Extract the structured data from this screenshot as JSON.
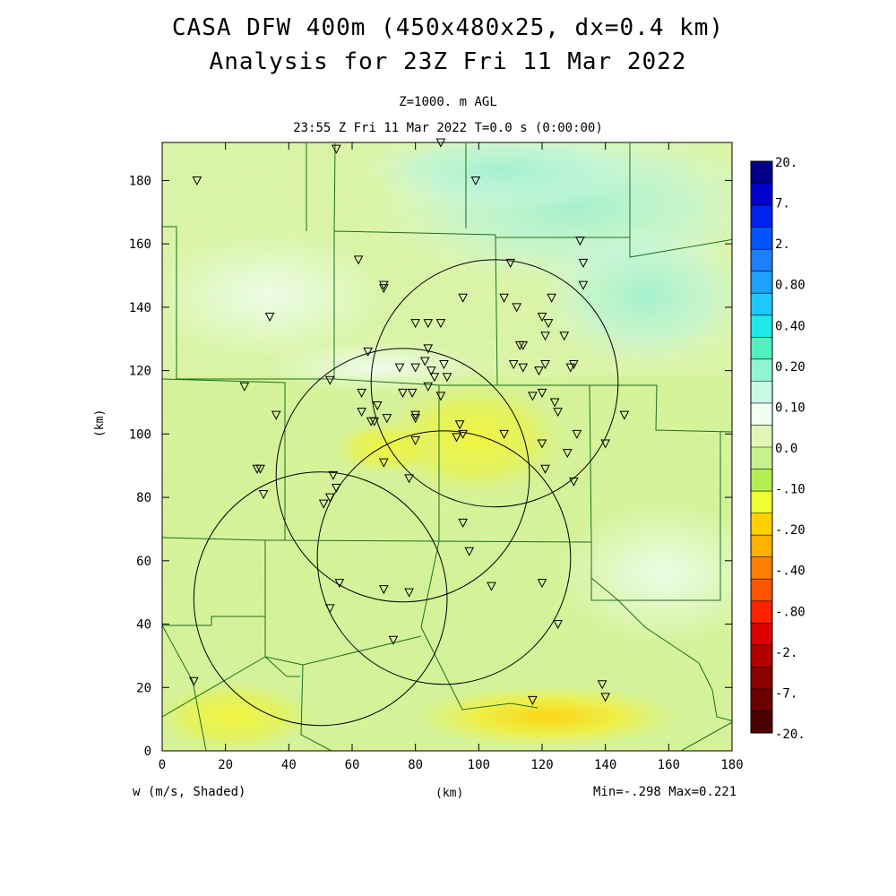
{
  "header": {
    "title_line1": "CASA DFW 400m (450x480x25, dx=0.4 km)",
    "title_line2": "Analysis for 23Z Fri 11 Mar 2022",
    "level": "Z=1000. m AGL",
    "time": "23:55 Z Fri 11 Mar 2022    T=0.0 s (0:00:00)"
  },
  "footer": {
    "variable": "w (m/s, Shaded)",
    "x_unit": "(km)",
    "minmax": "Min=-.298 Max=0.221"
  },
  "axes": {
    "y_unit": "(km)",
    "x_ticks": [
      0,
      20,
      40,
      60,
      80,
      100,
      120,
      140,
      160,
      180
    ],
    "y_ticks": [
      0,
      20,
      40,
      60,
      80,
      100,
      120,
      140,
      160,
      180
    ],
    "x_range": [
      0,
      180
    ],
    "y_range": [
      0,
      192
    ]
  },
  "colorbar": {
    "labels": [
      "20.",
      "7.",
      "2.",
      "0.80",
      "0.40",
      "0.20",
      "0.10",
      "0.0",
      "-.10",
      "-.20",
      "-.40",
      "-.80",
      "-2.",
      "-7.",
      "-20."
    ],
    "colors": [
      "#00008b",
      "#0000cd",
      "#0022ee",
      "#0055ff",
      "#1e7fff",
      "#1ea0ff",
      "#1ec8ff",
      "#20e8e8",
      "#50f0c0",
      "#90f5d0",
      "#c8fae6",
      "#f0fff0",
      "#e0f7b8",
      "#c8f08c",
      "#b4ee55",
      "#eeff33",
      "#ffd000",
      "#ffb000",
      "#ff8000",
      "#ff5500",
      "#ff2200",
      "#dd0000",
      "#b50000",
      "#8b0000",
      "#6a0000",
      "#4a0000"
    ]
  },
  "chart_data": {
    "type": "heatmap",
    "field": "w (m/s)",
    "level_m_agl": 1000,
    "min": -0.298,
    "max": 0.221,
    "radar_rings": [
      {
        "center_km": [
          105,
          116
        ],
        "radius_km": 39
      },
      {
        "center_km": [
          76,
          87
        ],
        "radius_km": 40
      },
      {
        "center_km": [
          89,
          61
        ],
        "radius_km": 40
      },
      {
        "center_km": [
          50,
          48
        ],
        "radius_km": 40
      }
    ],
    "stations_km": [
      [
        11,
        180
      ],
      [
        55,
        190
      ],
      [
        88,
        192
      ],
      [
        99,
        180
      ],
      [
        62,
        155
      ],
      [
        70,
        147
      ],
      [
        70,
        146
      ],
      [
        132,
        161
      ],
      [
        133,
        154
      ],
      [
        133,
        147
      ],
      [
        110,
        154
      ],
      [
        108,
        143
      ],
      [
        95,
        143
      ],
      [
        123,
        143
      ],
      [
        112,
        140
      ],
      [
        120,
        137
      ],
      [
        122,
        135
      ],
      [
        121,
        131
      ],
      [
        127,
        131
      ],
      [
        34,
        137
      ],
      [
        80,
        135
      ],
      [
        84,
        135
      ],
      [
        88,
        135
      ],
      [
        113,
        128
      ],
      [
        114,
        128
      ],
      [
        84,
        127
      ],
      [
        65,
        126
      ],
      [
        83,
        123
      ],
      [
        89,
        122
      ],
      [
        111,
        122
      ],
      [
        114,
        121
      ],
      [
        119,
        120
      ],
      [
        121,
        122
      ],
      [
        129,
        121
      ],
      [
        130,
        122
      ],
      [
        75,
        121
      ],
      [
        80,
        121
      ],
      [
        85,
        120
      ],
      [
        86,
        118
      ],
      [
        90,
        118
      ],
      [
        53,
        117
      ],
      [
        26,
        115
      ],
      [
        84,
        115
      ],
      [
        76,
        113
      ],
      [
        79,
        113
      ],
      [
        63,
        113
      ],
      [
        88,
        112
      ],
      [
        117,
        112
      ],
      [
        120,
        113
      ],
      [
        124,
        110
      ],
      [
        125,
        107
      ],
      [
        146,
        106
      ],
      [
        36,
        106
      ],
      [
        63,
        107
      ],
      [
        68,
        109
      ],
      [
        67,
        104
      ],
      [
        66,
        104
      ],
      [
        71,
        105
      ],
      [
        80,
        105
      ],
      [
        80,
        106
      ],
      [
        94,
        103
      ],
      [
        108,
        100
      ],
      [
        131,
        100
      ],
      [
        93,
        99
      ],
      [
        95,
        100
      ],
      [
        80,
        98
      ],
      [
        120,
        97
      ],
      [
        140,
        97
      ],
      [
        128,
        94
      ],
      [
        70,
        91
      ],
      [
        121,
        89
      ],
      [
        30,
        89
      ],
      [
        31,
        89
      ],
      [
        78,
        86
      ],
      [
        130,
        85
      ],
      [
        54,
        87
      ],
      [
        55,
        83
      ],
      [
        32,
        81
      ],
      [
        53,
        80
      ],
      [
        51,
        78
      ],
      [
        95,
        72
      ],
      [
        97,
        63
      ],
      [
        56,
        53
      ],
      [
        70,
        51
      ],
      [
        78,
        50
      ],
      [
        104,
        52
      ],
      [
        120,
        53
      ],
      [
        53,
        45
      ],
      [
        125,
        40
      ],
      [
        73,
        35
      ],
      [
        10,
        22
      ],
      [
        139,
        21
      ],
      [
        140,
        17
      ],
      [
        117,
        16
      ]
    ]
  }
}
